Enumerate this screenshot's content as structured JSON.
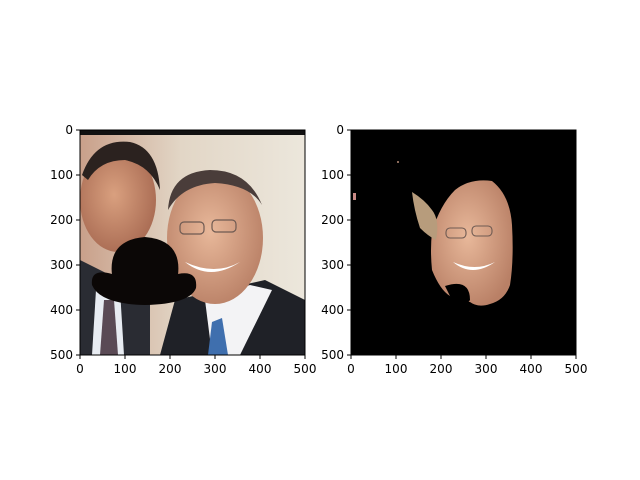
{
  "chart_data": [
    {
      "type": "image",
      "title": "",
      "xlabel": "",
      "ylabel": "",
      "xlim": [
        0,
        500
      ],
      "ylim": [
        500,
        0
      ],
      "xticks": [
        0,
        100,
        200,
        300,
        400,
        500
      ],
      "yticks": [
        0,
        100,
        200,
        300,
        400,
        500
      ],
      "content": "photo of two smiling men in suits with a black bowler-hat shape covering the lower-left face area",
      "grid": false
    },
    {
      "type": "image",
      "title": "",
      "xlabel": "",
      "ylabel": "",
      "xlim": [
        0,
        500
      ],
      "ylim": [
        500,
        0
      ],
      "xticks": [
        0,
        100,
        200,
        300,
        400,
        500
      ],
      "yticks": [
        0,
        100,
        200,
        300,
        400,
        500
      ],
      "content": "segmentation mask result: black background with only the right man's face region visible",
      "grid": false
    }
  ],
  "colors": {
    "axis": "#000000",
    "mask_background": "#000000",
    "hat": "#0b0706",
    "skin": "#d9a687",
    "wall": "#ddd6c7",
    "suit": "#1f2127"
  }
}
